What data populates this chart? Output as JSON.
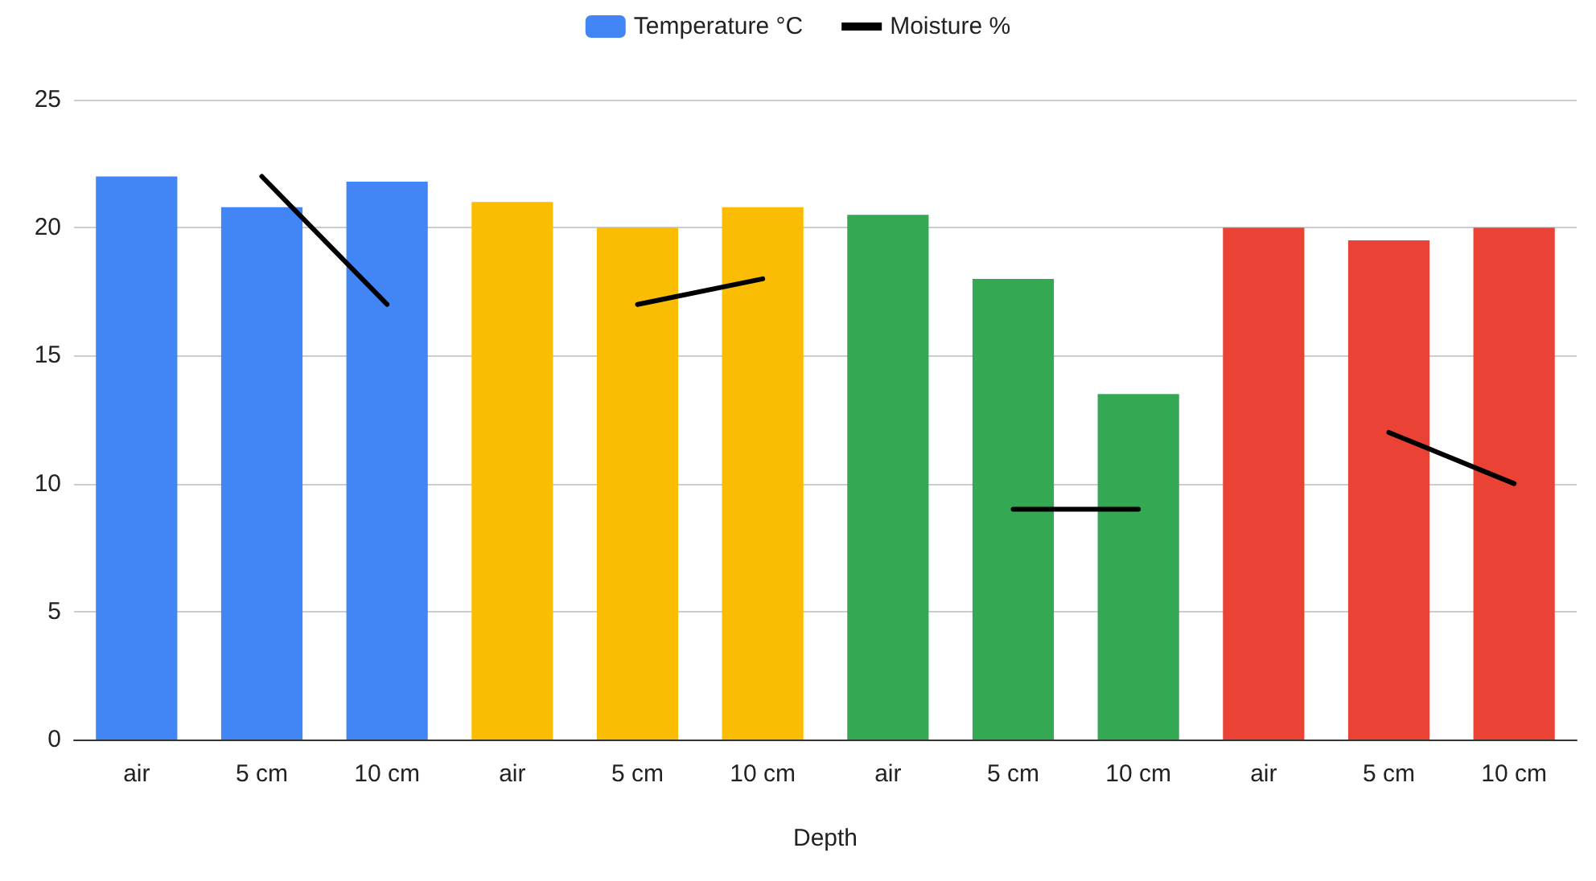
{
  "chart_data": {
    "type": "bar",
    "xlabel": "Depth",
    "categories": [
      "air",
      "5 cm",
      "10 cm",
      "air",
      "5 cm",
      "10 cm",
      "air",
      "5 cm",
      "10 cm",
      "air",
      "5 cm",
      "10 cm"
    ],
    "series": [
      {
        "name": "Temperature °C",
        "color": "#4285f4",
        "colors": [
          "#4285f4",
          "#4285f4",
          "#4285f4",
          "#fbbc04",
          "#fbbc04",
          "#fbbc04",
          "#34a853",
          "#34a853",
          "#34a853",
          "#ea4335",
          "#ea4335",
          "#ea4335"
        ],
        "values": [
          22,
          20.8,
          21.8,
          21,
          20,
          20.8,
          20.5,
          18,
          13.5,
          20,
          19.5,
          20
        ]
      },
      {
        "name": "Moisture %",
        "type": "line",
        "color": "#000000",
        "values": [
          null,
          22,
          17,
          null,
          17,
          18,
          null,
          9,
          9,
          null,
          12,
          10
        ]
      }
    ],
    "ylim": [
      0,
      25
    ],
    "yticks": [
      0,
      5,
      10,
      15,
      20,
      25
    ],
    "grid": "y",
    "legend": "top",
    "marker": "none",
    "line_style": "solid"
  }
}
